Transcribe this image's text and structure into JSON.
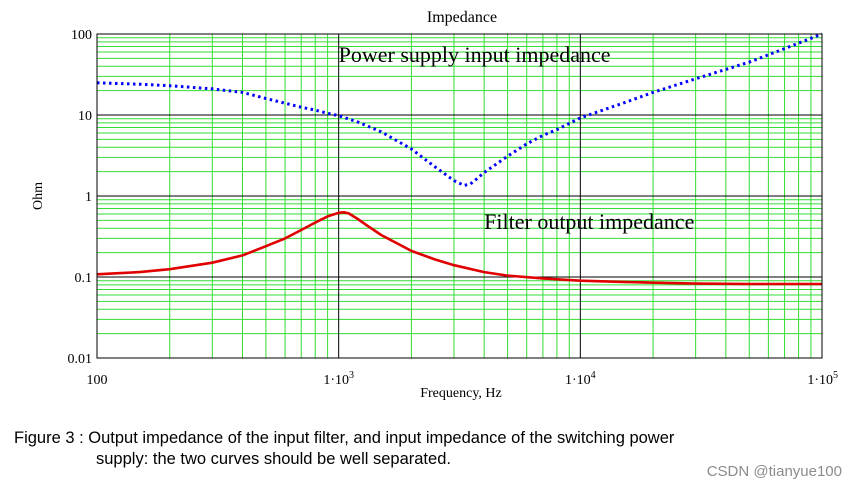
{
  "chart_data": {
    "type": "line",
    "title": "Impedance",
    "xlabel": "Frequency, Hz",
    "ylabel": "Ohm",
    "xscale": "log",
    "yscale": "log",
    "xlim": [
      100,
      100000
    ],
    "ylim": [
      0.01,
      100
    ],
    "grid": true,
    "x_ticks": [
      {
        "value": 100,
        "base": "100",
        "exp": ""
      },
      {
        "value": 1000,
        "base": "1·10",
        "exp": "3"
      },
      {
        "value": 10000,
        "base": "1·10",
        "exp": "4"
      },
      {
        "value": 100000,
        "base": "1·10",
        "exp": "5"
      }
    ],
    "y_ticks": [
      {
        "value": 100,
        "label": "100"
      },
      {
        "value": 10,
        "label": "10"
      },
      {
        "value": 1,
        "label": "1"
      },
      {
        "value": 0.1,
        "label": "0.1"
      },
      {
        "value": 0.01,
        "label": "0.01"
      }
    ],
    "series": [
      {
        "name": "Power supply input impedance",
        "color": "#0000ff",
        "style": "dotted",
        "x": [
          100,
          150,
          200,
          300,
          400,
          500,
          600,
          700,
          800,
          900,
          1000,
          1200,
          1500,
          2000,
          2500,
          3000,
          3300,
          3500,
          3700,
          4000,
          5000,
          6000,
          7000,
          8000,
          10000,
          15000,
          20000,
          30000,
          50000,
          70000,
          100000
        ],
        "y": [
          25,
          24,
          23,
          21,
          19,
          16,
          14,
          12.5,
          11.5,
          10.5,
          9.8,
          8.2,
          6.2,
          3.8,
          2.3,
          1.55,
          1.35,
          1.4,
          1.6,
          1.95,
          3.1,
          4.4,
          5.6,
          6.6,
          9.2,
          14,
          19,
          28,
          45,
          66,
          100
        ]
      },
      {
        "name": "Filter output impedance",
        "color": "#e00000",
        "style": "solid",
        "x": [
          100,
          150,
          200,
          300,
          400,
          500,
          600,
          700,
          800,
          900,
          1000,
          1050,
          1100,
          1200,
          1300,
          1500,
          2000,
          2500,
          3000,
          4000,
          5000,
          7000,
          10000,
          15000,
          20000,
          30000,
          50000,
          100000
        ],
        "y": [
          0.108,
          0.115,
          0.125,
          0.15,
          0.185,
          0.24,
          0.3,
          0.38,
          0.47,
          0.56,
          0.62,
          0.63,
          0.61,
          0.52,
          0.44,
          0.33,
          0.21,
          0.165,
          0.14,
          0.115,
          0.104,
          0.096,
          0.09,
          0.087,
          0.085,
          0.083,
          0.082,
          0.082
        ]
      }
    ],
    "annotations": [
      {
        "text": "Power supply input impedance",
        "x": 1000,
        "y": 55
      },
      {
        "text": "Filter output impedance",
        "x": 4000,
        "y": 0.48
      }
    ]
  },
  "caption": {
    "line1": "Figure 3 : Output impedance of the input filter, and input impedance of the switching power",
    "line2": "supply: the two curves should be well separated."
  },
  "watermark": "CSDN @tianyue100"
}
